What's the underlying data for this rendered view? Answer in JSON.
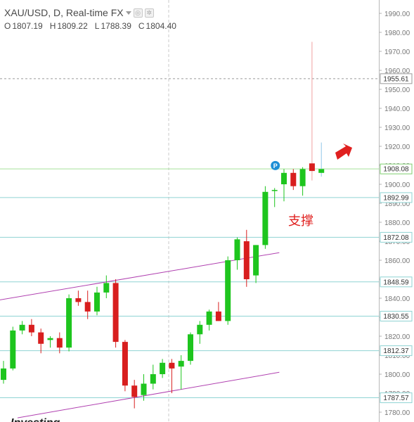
{
  "header": {
    "symbol_line": "XAU/USD, D, Real-time FX",
    "ohlc": [
      {
        "key": "O",
        "value": "1807.19"
      },
      {
        "key": "H",
        "value": "1809.22"
      },
      {
        "key": "L",
        "value": "1788.39"
      },
      {
        "key": "C",
        "value": "1804.40"
      }
    ]
  },
  "annotation_text": "支撑",
  "watermark": "Investing",
  "colors": {
    "up": "#1ec51e",
    "down": "#d81e1e",
    "support_line": "#8fd3d3",
    "resistance_line": "#a6e19a",
    "channel": "#b040b0",
    "arrow": "#e0201f",
    "p_badge": "#1e8fd5",
    "annotation": "#e0201f"
  },
  "chart_data": {
    "type": "candlestick",
    "y_axis": {
      "range": [
        1777,
        1997
      ],
      "ticks": [
        1780,
        1790,
        1800,
        1810,
        1820,
        1830,
        1840,
        1850,
        1860,
        1870,
        1880,
        1890,
        1900,
        1910,
        1920,
        1930,
        1940,
        1950,
        1960,
        1970,
        1980,
        1990
      ],
      "tick_labels": [
        "1780.00",
        "1790.00",
        "1800.00",
        "1810.00",
        "1820.00",
        "1830.00",
        "1840.00",
        "1850.00",
        "1860.00",
        "1870.00",
        "1880.00",
        "1890.00",
        "1900.00",
        "1910.00",
        "1920.00",
        "1930.00",
        "1940.00",
        "1950.00",
        "1960.00",
        "1970.00",
        "1980.00",
        "1990.00"
      ]
    },
    "horizontal_levels": [
      {
        "value": 1955.61,
        "label": "1955.61",
        "style": "dashed-gray"
      },
      {
        "value": 1908.08,
        "label": "1908.08",
        "style": "green"
      },
      {
        "value": 1892.99,
        "label": "1892.99",
        "style": "teal"
      },
      {
        "value": 1872.08,
        "label": "1872.08",
        "style": "teal"
      },
      {
        "value": 1848.59,
        "label": "1848.59",
        "style": "teal"
      },
      {
        "value": 1830.55,
        "label": "1830.55",
        "style": "teal"
      },
      {
        "value": 1812.37,
        "label": "1812.37",
        "style": "teal"
      },
      {
        "value": 1787.57,
        "label": "1787.57",
        "style": "teal"
      }
    ],
    "channel_lines": [
      {
        "from": {
          "index": -0.5,
          "price": 1839
        },
        "to": {
          "index": 29.5,
          "price": 1864
        }
      },
      {
        "from": {
          "index": 1.5,
          "price": 1777
        },
        "to": {
          "index": 29.5,
          "price": 1801
        }
      }
    ],
    "candles": [
      {
        "o": 1797,
        "h": 1807,
        "l": 1795,
        "c": 1803
      },
      {
        "o": 1803,
        "h": 1825,
        "l": 1802,
        "c": 1823
      },
      {
        "o": 1823,
        "h": 1828,
        "l": 1821,
        "c": 1826
      },
      {
        "o": 1826,
        "h": 1829,
        "l": 1820,
        "c": 1822
      },
      {
        "o": 1822,
        "h": 1824,
        "l": 1811,
        "c": 1816
      },
      {
        "o": 1818,
        "h": 1820,
        "l": 1814,
        "c": 1819
      },
      {
        "o": 1819,
        "h": 1822,
        "l": 1811,
        "c": 1814
      },
      {
        "o": 1814,
        "h": 1842,
        "l": 1812,
        "c": 1840
      },
      {
        "o": 1840,
        "h": 1844,
        "l": 1836,
        "c": 1838
      },
      {
        "o": 1838,
        "h": 1844,
        "l": 1829,
        "c": 1833
      },
      {
        "o": 1833,
        "h": 1846,
        "l": 1831,
        "c": 1843
      },
      {
        "o": 1843,
        "h": 1852,
        "l": 1840,
        "c": 1848
      },
      {
        "o": 1848,
        "h": 1850,
        "l": 1814,
        "c": 1817
      },
      {
        "o": 1817,
        "h": 1818,
        "l": 1791,
        "c": 1794
      },
      {
        "o": 1794,
        "h": 1797,
        "l": 1782,
        "c": 1788
      },
      {
        "o": 1789,
        "h": 1800,
        "l": 1786,
        "c": 1795
      },
      {
        "o": 1795,
        "h": 1805,
        "l": 1792,
        "c": 1800
      },
      {
        "o": 1800,
        "h": 1808,
        "l": 1798,
        "c": 1806
      },
      {
        "o": 1806,
        "h": 1808,
        "l": 1790,
        "c": 1803
      },
      {
        "o": 1804,
        "h": 1810,
        "l": 1792,
        "c": 1807
      },
      {
        "o": 1807,
        "h": 1822,
        "l": 1805,
        "c": 1821
      },
      {
        "o": 1821,
        "h": 1828,
        "l": 1816,
        "c": 1826
      },
      {
        "o": 1826,
        "h": 1834,
        "l": 1823,
        "c": 1833
      },
      {
        "o": 1833,
        "h": 1838,
        "l": 1828,
        "c": 1828
      },
      {
        "o": 1828,
        "h": 1862,
        "l": 1826,
        "c": 1860
      },
      {
        "o": 1860,
        "h": 1872,
        "l": 1855,
        "c": 1871
      },
      {
        "o": 1870,
        "h": 1876,
        "l": 1846,
        "c": 1850
      },
      {
        "o": 1852,
        "h": 1868,
        "l": 1848,
        "c": 1868
      },
      {
        "o": 1868,
        "h": 1899,
        "l": 1866,
        "c": 1896
      },
      {
        "o": 1897,
        "h": 1898,
        "l": 1888,
        "c": 1897
      },
      {
        "o": 1900,
        "h": 1908,
        "l": 1891,
        "c": 1906
      },
      {
        "o": 1906,
        "h": 1908,
        "l": 1897,
        "c": 1899
      },
      {
        "o": 1899,
        "h": 1909,
        "l": 1894,
        "c": 1908
      },
      {
        "o": 1911,
        "h": 1975,
        "l": 1902,
        "c": 1907
      },
      {
        "o": 1906,
        "h": 1922,
        "l": 1904,
        "c": 1908
      }
    ]
  }
}
